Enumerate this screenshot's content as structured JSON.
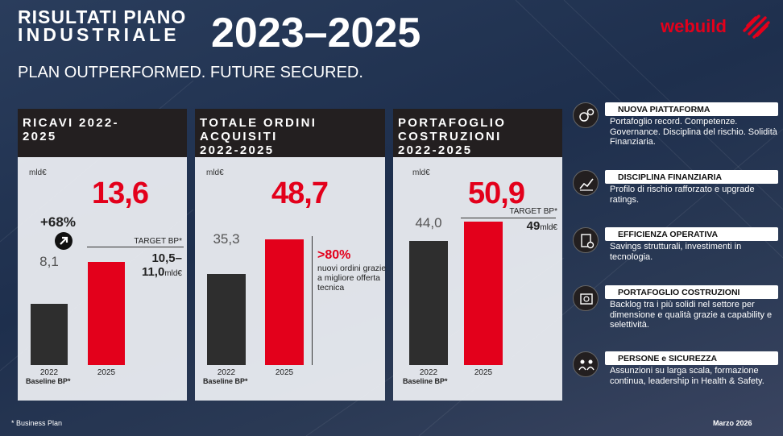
{
  "header": {
    "title_line1": "RISULTATI PIANO",
    "title_line2": "INDUSTRIALE",
    "title_years": "2023–2025",
    "subtitle": "PLAN OUTPERFORMED. FUTURE SECURED.",
    "logo": "webuild",
    "logo_color": "#e3001b"
  },
  "chart_data": [
    {
      "type": "bar",
      "title": "RICAVI 2022-2025",
      "unit": "mld€",
      "categories": [
        "2022",
        "2025"
      ],
      "category_note": "Baseline BP*",
      "values": [
        8.1,
        13.6
      ],
      "value_labels": [
        "8,1",
        "13,6"
      ],
      "colors": [
        "#2e2e2e",
        "#e3001b"
      ],
      "annotation_growth": "+68%",
      "target_label": "TARGET BP*",
      "target_value": "10,5–",
      "target_value2": "11,0",
      "target_unit": "mld€"
    },
    {
      "type": "bar",
      "title_line1": "TOTALE ORDINI",
      "title_line2": "ACQUISITI",
      "title_line3": "2022-2025",
      "unit": "mld€",
      "categories": [
        "2022",
        "2025"
      ],
      "category_note": "Baseline BP*",
      "values": [
        35.3,
        48.7
      ],
      "value_labels": [
        "35,3",
        "48,7"
      ],
      "colors": [
        "#2e2e2e",
        "#e3001b"
      ],
      "note_pct": ">80%",
      "note_text": "nuovi ordini grazie a migliore offerta tecnica"
    },
    {
      "type": "bar",
      "title_line1": "PORTAFOGLIO",
      "title_line2": "COSTRUZIONI",
      "title_line3": "2022-2025",
      "unit": "mld€",
      "categories": [
        "2022",
        "2025"
      ],
      "category_note": "Baseline BP*",
      "values": [
        44.0,
        50.9
      ],
      "value_labels": [
        "44,0",
        "50,9"
      ],
      "colors": [
        "#2e2e2e",
        "#e3001b"
      ],
      "target_label": "TARGET BP*",
      "target_value": "49",
      "target_unit": "mld€"
    }
  ],
  "sidebar": {
    "items": [
      {
        "icon": "gears-icon",
        "title": "NUOVA PIATTAFORMA",
        "text": "Portafoglio record. Competenze. Governance. Disciplina del rischio. Solidità Finanziaria."
      },
      {
        "icon": "growth-chart-icon",
        "title": "DISCIPLINA FINANZIARIA",
        "text": "Profilo di rischio rafforzato e upgrade ratings."
      },
      {
        "icon": "document-check-icon",
        "title": "EFFICIENZA OPERATIVA",
        "text": "Savings strutturali, investimenti in tecnologia."
      },
      {
        "icon": "portfolio-icon",
        "title": "PORTAFOGLIO COSTRUZIONI",
        "text": "Backlog tra i più solidi nel settore per dimensione e qualità grazie a capability e selettività."
      },
      {
        "icon": "people-icon",
        "title": "PERSONE e SICUREZZA",
        "text": "Assunzioni su larga scala, formazione continua, leadership in Health & Safety."
      }
    ]
  },
  "footer": {
    "note": "* Business Plan",
    "date": "Marzo 2026"
  }
}
